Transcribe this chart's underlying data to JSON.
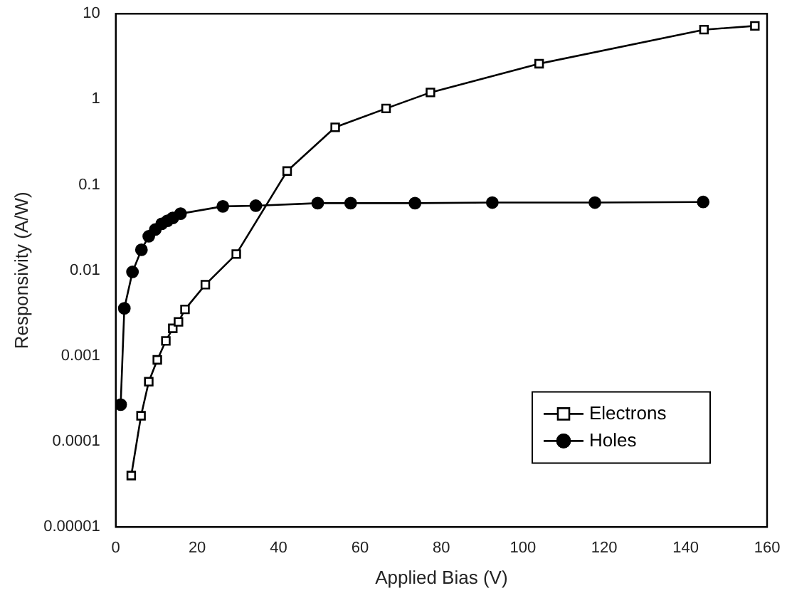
{
  "chart_data": {
    "type": "line",
    "xlabel": "Applied Bias (V)",
    "ylabel": "Responsivity (A/W)",
    "log": "y",
    "xlim": [
      0,
      160
    ],
    "xticks": [
      0,
      20,
      40,
      60,
      80,
      100,
      120,
      140,
      160
    ],
    "ylim": [
      1e-05,
      10
    ],
    "yticks": [
      {
        "value": 1e-05,
        "label": "0.00001"
      },
      0.0001,
      0.001,
      0.01,
      0.1,
      1,
      10
    ],
    "grid": false,
    "legend": "bottom right",
    "series": [
      {
        "name": "Electrons",
        "color": "#000000",
        "marker": "square",
        "x": [
          3.8,
          6.2,
          8.1,
          10.2,
          12.3,
          14,
          15.4,
          17,
          22,
          29.6,
          42.1,
          53.9,
          66.4,
          77.3,
          104,
          144.5,
          157
        ],
        "values": [
          4e-05,
          0.0002,
          0.0005,
          0.0009,
          0.0015,
          0.0021,
          0.0025,
          0.0035,
          0.0068,
          0.0155,
          0.145,
          0.47,
          0.78,
          1.2,
          2.6,
          6.5,
          7.2
        ]
      },
      {
        "name": "Holes",
        "color": "#000000",
        "marker": "circle",
        "x": [
          1.2,
          2.1,
          4.1,
          6.3,
          8.1,
          9.7,
          11.3,
          12.7,
          14,
          15.9,
          26.3,
          34.4,
          49.6,
          57.7,
          73.5,
          92.5,
          117.7,
          144.3
        ],
        "values": [
          0.00027,
          0.0036,
          0.0096,
          0.0174,
          0.025,
          0.03,
          0.035,
          0.038,
          0.041,
          0.046,
          0.056,
          0.057,
          0.061,
          0.061,
          0.061,
          0.062,
          0.062,
          0.063
        ]
      }
    ]
  }
}
